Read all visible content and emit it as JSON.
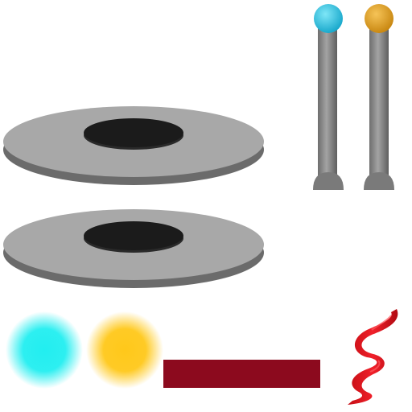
{
  "assets": {
    "disks": [
      {
        "icon": "disk-icon",
        "plate_color": "#a8a8a8",
        "edge_color": "#6b6b6b",
        "hole_color": "#1b1b1b"
      },
      {
        "icon": "disk-icon",
        "plate_color": "#a8a8a8",
        "edge_color": "#6b6b6b",
        "hole_color": "#1b1b1b"
      }
    ],
    "pins": [
      {
        "icon": "pin-icon",
        "head_color": "#27c4e3",
        "shaft_color": "#8a8a8a"
      },
      {
        "icon": "pin-icon",
        "head_color": "#e3a11f",
        "shaft_color": "#8a8a8a"
      }
    ],
    "glows": [
      {
        "icon": "glow-orb-icon",
        "color": "#22eef0"
      },
      {
        "icon": "glow-orb-icon",
        "color": "#ffc81a"
      }
    ],
    "bar": {
      "icon": "bar-icon",
      "color": "#8c0a1e"
    },
    "ribbon": {
      "icon": "ribbon-spiral-icon",
      "color": "#e3121b"
    }
  }
}
